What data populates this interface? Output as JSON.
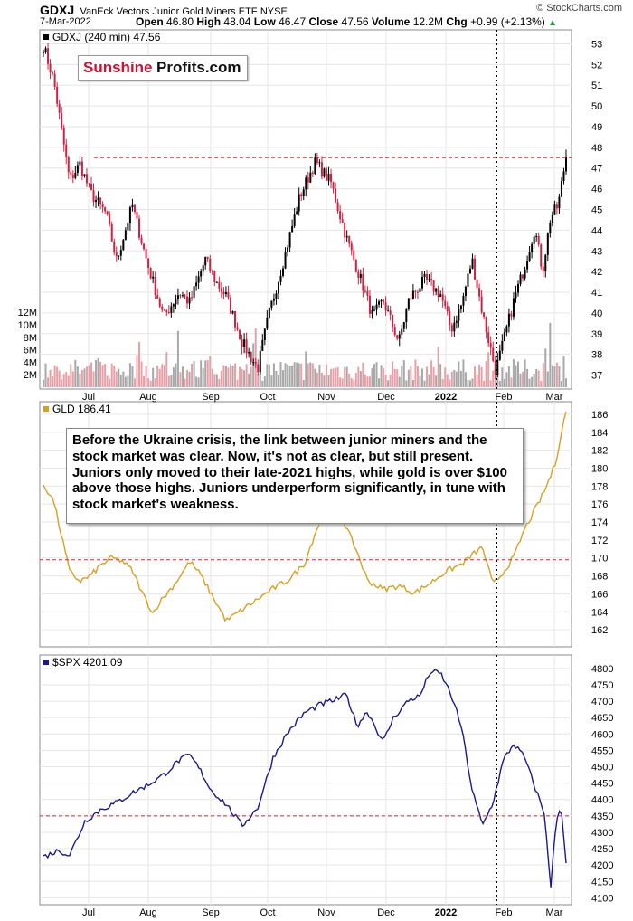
{
  "header": {
    "symbol": "GDXJ",
    "name": "VanEck Vectors Junior Gold Miners ETF",
    "exchange": "NYSE",
    "date": "7-Mar-2022",
    "open_label": "Open",
    "open": "46.80",
    "high_label": "High",
    "high": "48.04",
    "low_label": "Low",
    "low": "46.47",
    "close_label": "Close",
    "close": "47.56",
    "volume_label": "Volume",
    "volume": "12.2M",
    "chg_label": "Chg",
    "chg": "+0.99 (+2.13%)",
    "copyright": "© StockCharts.com"
  },
  "logo": {
    "part1": "Sunshine",
    "part2": "Profits.com"
  },
  "annotation": "Before the Ukraine crisis, the link between junior miners and the stock market was clear. Now, it's not as clear, but still present. Juniors only moved to their late-2021 highs, while gold is over $100 above those highs. Juniors underperform significantly, in tune with stock market's weakness.",
  "x_axis_labels": [
    "Jul",
    "Aug",
    "Sep",
    "Oct",
    "Nov",
    "Dec",
    "2022",
    "Feb",
    "Mar"
  ],
  "colors": {
    "up_candle": "#000000",
    "down_candle": "#cc2244",
    "gld_line": "#d9a020",
    "spx_line": "#1a1a8c",
    "reference_line": "#dd2233",
    "volume_up": "#a8a8a8",
    "volume_down": "#e8a0a8"
  },
  "chart_data": [
    {
      "type": "candlestick",
      "title": "GDXJ (240 min) 47.56",
      "ylim": [
        36.5,
        53.5
      ],
      "y_ticks": [
        37,
        38,
        39,
        40,
        41,
        42,
        43,
        44,
        45,
        46,
        47,
        48,
        49,
        50,
        51,
        52,
        53
      ],
      "reference_line": 47.5,
      "keypoints": [
        [
          0,
          52.9
        ],
        [
          0.02,
          51.2
        ],
        [
          0.035,
          48.8
        ],
        [
          0.05,
          46.4
        ],
        [
          0.07,
          47.2
        ],
        [
          0.09,
          45.8
        ],
        [
          0.12,
          44.8
        ],
        [
          0.14,
          42.5
        ],
        [
          0.17,
          45.2
        ],
        [
          0.2,
          42.3
        ],
        [
          0.23,
          39.8
        ],
        [
          0.26,
          41.0
        ],
        [
          0.28,
          40.5
        ],
        [
          0.31,
          42.6
        ],
        [
          0.33,
          41.5
        ],
        [
          0.35,
          40.8
        ],
        [
          0.38,
          38.6
        ],
        [
          0.41,
          37.3
        ],
        [
          0.43,
          39.8
        ],
        [
          0.46,
          42.6
        ],
        [
          0.49,
          45.6
        ],
        [
          0.52,
          47.3
        ],
        [
          0.55,
          46.3
        ],
        [
          0.58,
          43.6
        ],
        [
          0.61,
          41.4
        ],
        [
          0.63,
          39.8
        ],
        [
          0.65,
          40.6
        ],
        [
          0.68,
          38.6
        ],
        [
          0.7,
          40.7
        ],
        [
          0.73,
          41.6
        ],
        [
          0.76,
          40.9
        ],
        [
          0.78,
          39.2
        ],
        [
          0.8,
          40.4
        ],
        [
          0.82,
          42.6
        ],
        [
          0.84,
          40.0
        ],
        [
          0.865,
          37.2
        ],
        [
          0.88,
          38.6
        ],
        [
          0.9,
          40.6
        ],
        [
          0.92,
          42.2
        ],
        [
          0.94,
          44.1
        ],
        [
          0.955,
          42.0
        ],
        [
          0.97,
          44.6
        ],
        [
          0.985,
          45.2
        ],
        [
          1,
          47.6
        ]
      ],
      "volume": {
        "y_ticks_labels": [
          "2M",
          "4M",
          "6M",
          "8M",
          "10M",
          "12M"
        ],
        "y_ticks_values": [
          2,
          4,
          6,
          8,
          10,
          12
        ],
        "max": 20
      }
    },
    {
      "type": "line",
      "title": "GLD 186.41",
      "ylim": [
        160.5,
        187
      ],
      "y_ticks": [
        162,
        164,
        166,
        168,
        170,
        172,
        174,
        176,
        178,
        180,
        182,
        184,
        186
      ],
      "reference_line": 169.8,
      "keypoints": [
        [
          0,
          178.2
        ],
        [
          0.02,
          176.3
        ],
        [
          0.035,
          172.4
        ],
        [
          0.05,
          168.5
        ],
        [
          0.07,
          167.4
        ],
        [
          0.09,
          168.0
        ],
        [
          0.11,
          169.2
        ],
        [
          0.13,
          170.0
        ],
        [
          0.15,
          169.7
        ],
        [
          0.17,
          168.6
        ],
        [
          0.19,
          166.0
        ],
        [
          0.21,
          163.8
        ],
        [
          0.22,
          164.9
        ],
        [
          0.25,
          167.0
        ],
        [
          0.28,
          169.6
        ],
        [
          0.3,
          168.2
        ],
        [
          0.32,
          166.1
        ],
        [
          0.35,
          163.0
        ],
        [
          0.38,
          164.2
        ],
        [
          0.41,
          165.4
        ],
        [
          0.44,
          166.6
        ],
        [
          0.47,
          167.6
        ],
        [
          0.5,
          169.4
        ],
        [
          0.52,
          172.8
        ],
        [
          0.55,
          176.6
        ],
        [
          0.57,
          174.6
        ],
        [
          0.6,
          170.7
        ],
        [
          0.62,
          167.5
        ],
        [
          0.65,
          166.5
        ],
        [
          0.68,
          166.9
        ],
        [
          0.71,
          166.1
        ],
        [
          0.74,
          167.2
        ],
        [
          0.77,
          168.5
        ],
        [
          0.8,
          169.3
        ],
        [
          0.82,
          170.3
        ],
        [
          0.84,
          171.2
        ],
        [
          0.86,
          167.0
        ],
        [
          0.88,
          168.4
        ],
        [
          0.9,
          170.1
        ],
        [
          0.92,
          173.1
        ],
        [
          0.94,
          175.3
        ],
        [
          0.96,
          177.6
        ],
        [
          0.98,
          180.6
        ],
        [
          0.99,
          183.7
        ],
        [
          1,
          186.4
        ]
      ]
    },
    {
      "type": "line",
      "title": "$SPX 4201.09",
      "ylim": [
        4090,
        4830
      ],
      "y_ticks": [
        4100,
        4150,
        4200,
        4250,
        4300,
        4350,
        4400,
        4450,
        4500,
        4550,
        4600,
        4650,
        4700,
        4750,
        4800
      ],
      "reference_line": 4350,
      "keypoints": [
        [
          0,
          4225
        ],
        [
          0.03,
          4245
        ],
        [
          0.05,
          4230
        ],
        [
          0.08,
          4335
        ],
        [
          0.11,
          4370
        ],
        [
          0.14,
          4390
        ],
        [
          0.17,
          4420
        ],
        [
          0.2,
          4445
        ],
        [
          0.23,
          4475
        ],
        [
          0.26,
          4520
        ],
        [
          0.28,
          4535
        ],
        [
          0.3,
          4490
        ],
        [
          0.32,
          4430
        ],
        [
          0.35,
          4385
        ],
        [
          0.38,
          4320
        ],
        [
          0.41,
          4375
        ],
        [
          0.44,
          4530
        ],
        [
          0.47,
          4610
        ],
        [
          0.5,
          4665
        ],
        [
          0.53,
          4690
        ],
        [
          0.56,
          4705
        ],
        [
          0.58,
          4720
        ],
        [
          0.6,
          4625
        ],
        [
          0.62,
          4670
        ],
        [
          0.65,
          4575
        ],
        [
          0.67,
          4650
        ],
        [
          0.7,
          4705
        ],
        [
          0.72,
          4715
        ],
        [
          0.74,
          4790
        ],
        [
          0.76,
          4785
        ],
        [
          0.78,
          4720
        ],
        [
          0.8,
          4620
        ],
        [
          0.82,
          4430
        ],
        [
          0.84,
          4320
        ],
        [
          0.86,
          4390
        ],
        [
          0.88,
          4520
        ],
        [
          0.9,
          4570
        ],
        [
          0.92,
          4530
        ],
        [
          0.94,
          4440
        ],
        [
          0.96,
          4350
        ],
        [
          0.97,
          4120
        ],
        [
          0.98,
          4320
        ],
        [
          0.99,
          4390
        ],
        [
          1,
          4201
        ]
      ]
    }
  ]
}
